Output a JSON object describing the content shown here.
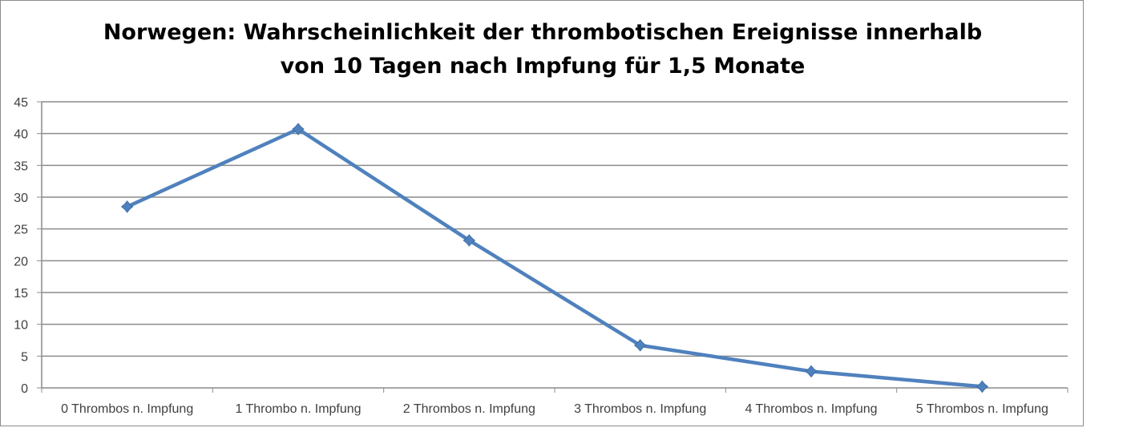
{
  "chart_data": {
    "type": "line",
    "title_lines": [
      "Norwegen: Wahrscheinlichkeit der thrombotischen Ereignisse innerhalb",
      "von 10 Tagen nach Impfung für 1,5 Monate"
    ],
    "categories": [
      "0 Thrombos n. Impfung",
      "1 Thrombo n. Impfung",
      "2 Thrombos n. Impfung",
      "3 Thrombos n. Impfung",
      "4 Thrombos n. Impfung",
      "5 Thrombos n. Impfung"
    ],
    "series": [
      {
        "values": [
          28.5,
          40.7,
          23.2,
          6.7,
          2.6,
          0.2
        ],
        "color": "#4f81bd"
      }
    ],
    "yticks": [
      "0",
      "5",
      "10",
      "15",
      "20",
      "25",
      "30",
      "35",
      "40",
      "45"
    ],
    "ylim": [
      0,
      45
    ],
    "grid": true,
    "legend": "none",
    "xlabel": "",
    "ylabel": ""
  }
}
